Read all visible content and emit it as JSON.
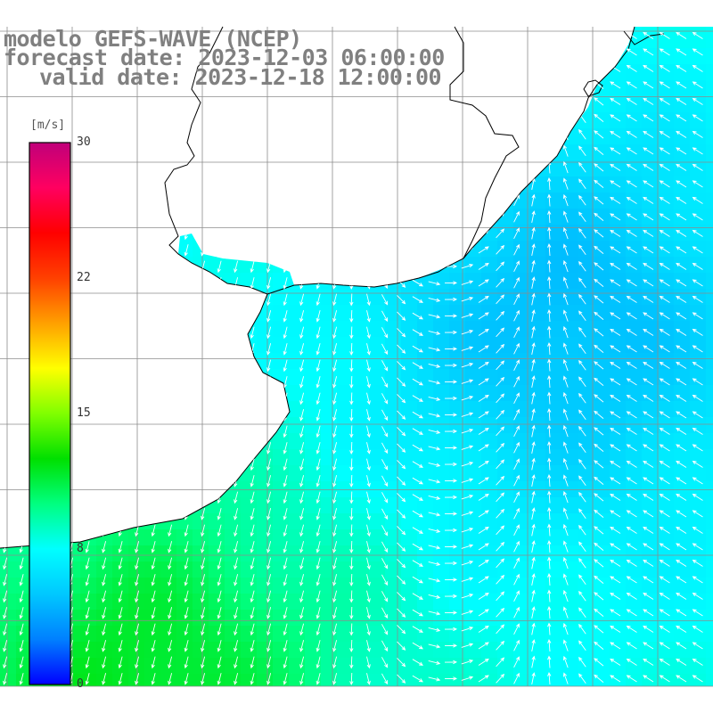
{
  "title": {
    "model": "modelo GEFS-WAVE (NCEP)",
    "forecast": "forecast date: 2023-12-03 06:00:00",
    "valid": "valid date: 2023-12-18 12:00:00"
  },
  "colorbar": {
    "unit": "[m/s]",
    "ticks": [
      "30",
      "22",
      "15",
      "8",
      "0"
    ],
    "tick_values": [
      30,
      22,
      15,
      8,
      0
    ],
    "range": [
      0,
      30
    ],
    "colors": [
      "#0000ff",
      "#0080ff",
      "#00c8ff",
      "#00ffff",
      "#00ff80",
      "#00e000",
      "#80ff00",
      "#ffff00",
      "#ffa000",
      "#ff4000",
      "#ff0000",
      "#ff0060",
      "#c0007a"
    ]
  },
  "colors": {
    "land": "#ffffff",
    "coast": "#000000",
    "grid": "#8c8c8c",
    "arrow": "#ffffff",
    "title": "#808080"
  }
}
